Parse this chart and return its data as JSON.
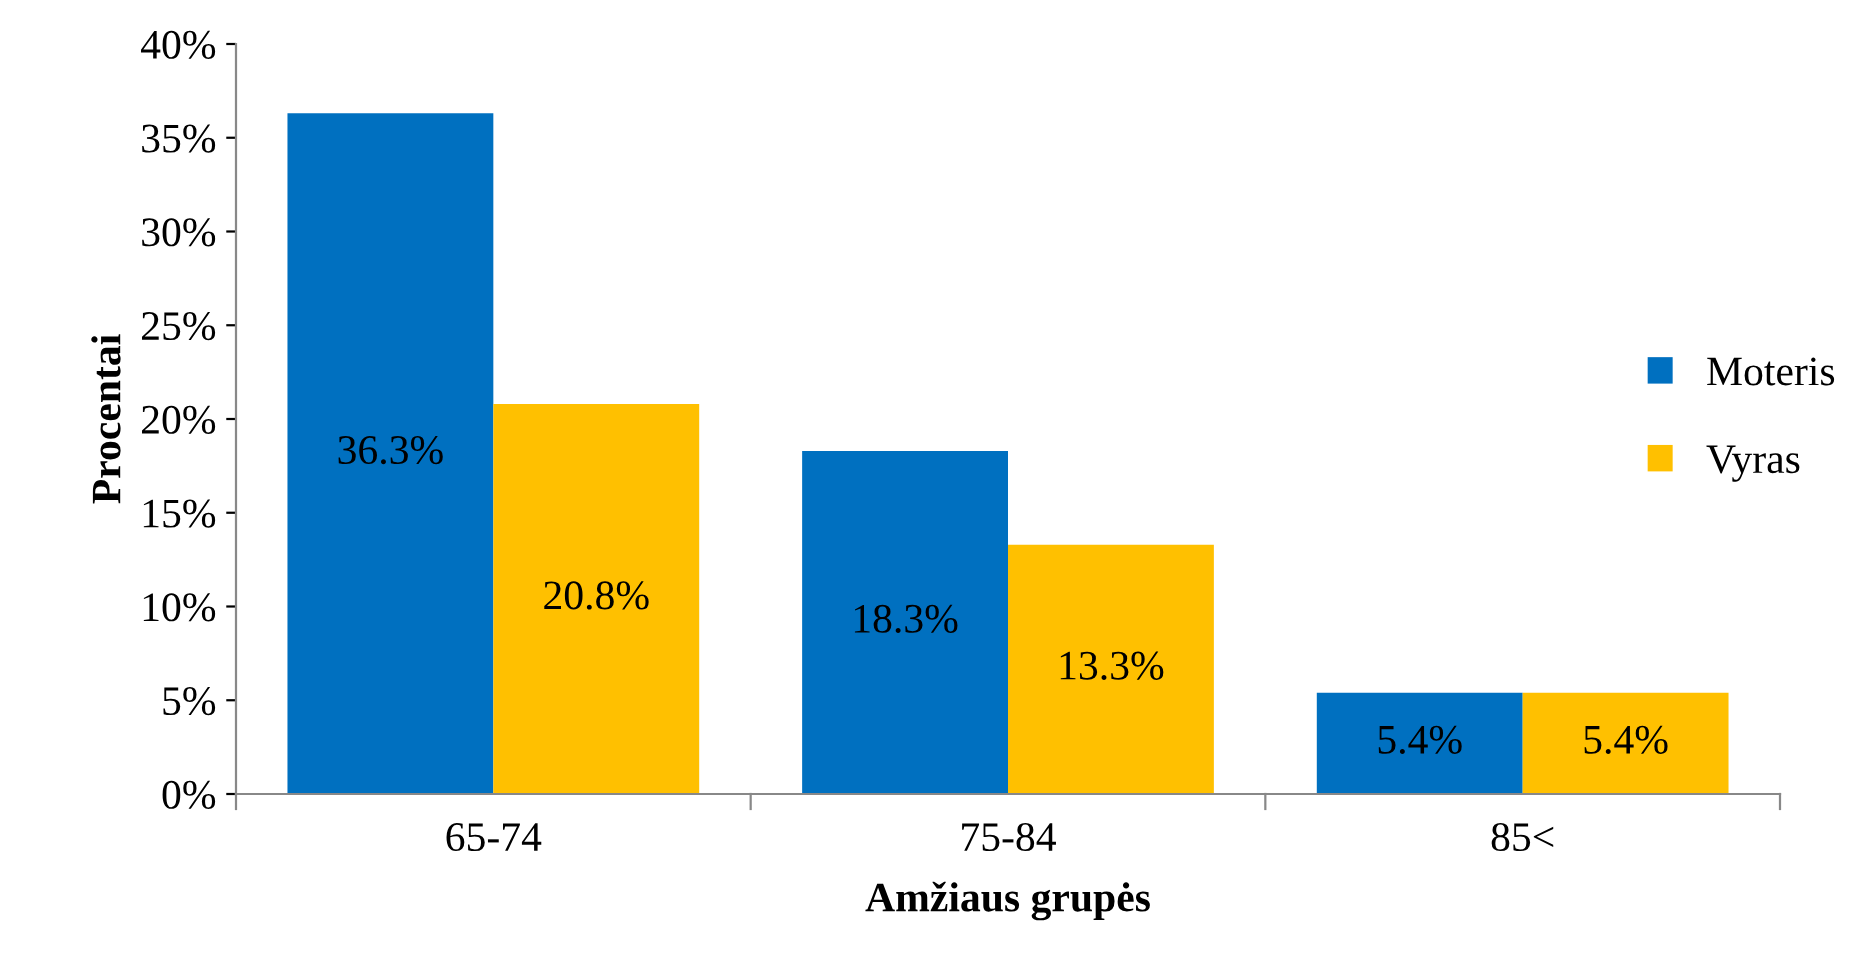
{
  "chart_data": {
    "type": "bar",
    "xlabel": "Amžiaus grupės",
    "ylabel": "Procentai",
    "categories": [
      "65-74",
      "75-84",
      "85<"
    ],
    "series": [
      {
        "name": "Moteris",
        "color": "#0070c0",
        "values": [
          36.3,
          18.3,
          5.4
        ],
        "value_labels": [
          "36.3%",
          "18.3%",
          "5.4%"
        ]
      },
      {
        "name": "Vyras",
        "color": "#ffc000",
        "values": [
          20.8,
          13.3,
          5.4
        ],
        "value_labels": [
          "20.8%",
          "13.3%",
          "5.4%"
        ]
      }
    ],
    "ylim": [
      0,
      40
    ],
    "yticks": [
      {
        "value": 0,
        "label": "0%"
      },
      {
        "value": 5,
        "label": "5%"
      },
      {
        "value": 10,
        "label": "10%"
      },
      {
        "value": 15,
        "label": "15%"
      },
      {
        "value": 20,
        "label": "20%"
      },
      {
        "value": 25,
        "label": "25%"
      },
      {
        "value": 30,
        "label": "30%"
      },
      {
        "value": 35,
        "label": "35%"
      },
      {
        "value": 40,
        "label": "40%"
      }
    ],
    "grid": false,
    "legend": "right"
  }
}
